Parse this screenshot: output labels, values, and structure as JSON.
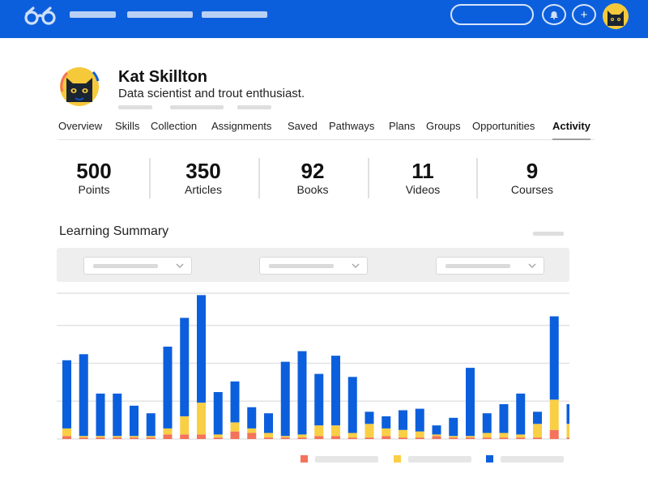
{
  "header": {
    "logo_icon": "glasses-icon",
    "notification_icon": "bell-icon",
    "add_icon": "plus-icon",
    "add_glyph": "+",
    "brand_color": "#0c5fdc"
  },
  "profile": {
    "name": "Kat Skillton",
    "bio": "Data scientist and trout enthusiast.",
    "avatar_icon": "cat-avatar-icon"
  },
  "tabs": [
    {
      "label": "Overview",
      "active": false
    },
    {
      "label": "Skills",
      "active": false
    },
    {
      "label": "Collection",
      "active": false
    },
    {
      "label": "Assignments",
      "active": false
    },
    {
      "label": "Saved",
      "active": false
    },
    {
      "label": "Pathways",
      "active": false
    },
    {
      "label": "Plans",
      "active": false
    },
    {
      "label": "Groups",
      "active": false
    },
    {
      "label": "Opportunities",
      "active": false
    },
    {
      "label": "Activity",
      "active": true
    }
  ],
  "stats": [
    {
      "value": "500",
      "label": "Points"
    },
    {
      "value": "350",
      "label": "Articles"
    },
    {
      "value": "92",
      "label": "Books"
    },
    {
      "value": "11",
      "label": "Videos"
    },
    {
      "value": "9",
      "label": "Courses"
    }
  ],
  "summary": {
    "title": "Learning Summary"
  },
  "chart_data": {
    "type": "bar",
    "stacked": true,
    "grid": true,
    "colors": [
      "#f4735a",
      "#f9cf46",
      "#0c5fdc"
    ],
    "ylim": [
      0,
      100
    ],
    "series": [
      {
        "values": [
          2,
          1,
          1,
          1,
          1,
          1,
          3,
          3,
          3,
          1,
          5,
          4,
          1,
          1,
          1,
          2,
          2,
          1,
          1,
          2,
          1,
          1,
          2,
          1,
          1,
          1,
          1,
          1,
          1,
          6,
          1
        ]
      },
      {
        "values": [
          5,
          1,
          1,
          1,
          1,
          1,
          4,
          12,
          21,
          2,
          6,
          3,
          3,
          1,
          2,
          7,
          7,
          3,
          9,
          5,
          5,
          4,
          1,
          1,
          1,
          3,
          3,
          2,
          9,
          20,
          9
        ]
      },
      {
        "values": [
          45,
          54,
          28,
          28,
          20,
          15,
          54,
          65,
          71,
          28,
          27,
          14,
          13,
          49,
          55,
          34,
          46,
          37,
          8,
          8,
          13,
          15,
          6,
          12,
          45,
          13,
          19,
          27,
          8,
          55,
          13
        ]
      }
    ]
  }
}
